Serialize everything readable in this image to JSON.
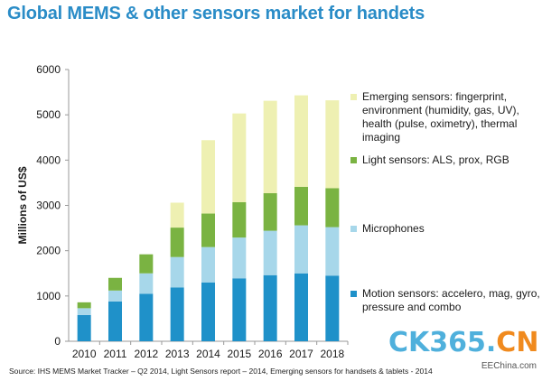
{
  "colors": {
    "title": "#2a8cc7",
    "motion": "#1f91c9",
    "microphones": "#a7d7ea",
    "light": "#7ab342",
    "emerging": "#eef0b2",
    "axis": "#999999",
    "watermark_blue": "#4fb0dc",
    "watermark_orange": "#f08a1e"
  },
  "header": {
    "title": "Global MEMS & other sensors market for handets"
  },
  "chart_data": {
    "type": "bar",
    "stacked": true,
    "title": "Global MEMS & other sensors market for handets",
    "xlabel": "",
    "ylabel": "Millions of US$",
    "ylim": [
      0,
      6000
    ],
    "yticks": [
      "0",
      "1000",
      "2000",
      "3000",
      "4000",
      "5000",
      "6000"
    ],
    "grid": false,
    "legend_position": "right",
    "categories": [
      "2010",
      "2011",
      "2012",
      "2013",
      "2014",
      "2015",
      "2016",
      "2017",
      "2018"
    ],
    "series": [
      {
        "name": "Motion sensors: accelero, mag, gyro, pressure and combo",
        "color": "#1f91c9",
        "values": [
          580,
          880,
          1050,
          1190,
          1300,
          1390,
          1460,
          1500,
          1450
        ]
      },
      {
        "name": "Microphones",
        "color": "#a7d7ea",
        "values": [
          150,
          240,
          450,
          670,
          780,
          900,
          980,
          1060,
          1070
        ]
      },
      {
        "name": "Light sensors: ALS, prox, RGB",
        "color": "#7ab342",
        "values": [
          130,
          280,
          420,
          650,
          740,
          780,
          830,
          850,
          860
        ]
      },
      {
        "name": "Emerging sensors: fingerprint, environment (humidity, gas, UV), health (pulse, oximetry), thermal imaging",
        "color": "#eef0b2",
        "values": [
          0,
          0,
          0,
          550,
          1620,
          1960,
          2040,
          2020,
          1940
        ]
      }
    ]
  },
  "legend": [
    {
      "label": "Emerging sensors: fingerprint, environment (humidity, gas, UV), health (pulse, oximetry), thermal imaging",
      "color": "#eef0b2"
    },
    {
      "label": "Light sensors: ALS, prox, RGB",
      "color": "#7ab342"
    },
    {
      "label": "Microphones",
      "color": "#a7d7ea"
    },
    {
      "label": "Motion sensors: accelero, mag, gyro, pressure and combo",
      "color": "#1f91c9"
    }
  ],
  "footer": {
    "source": "Source: IHS MEMS Market Tracker – Q2 2014, Light Sensors report – 2014, Emerging sensors for handsets & tablets - 2014"
  },
  "watermark": {
    "brand_prefix": "CK365",
    "brand_dot": ".",
    "brand_suffix": "CN",
    "site": "EEChina.com"
  }
}
